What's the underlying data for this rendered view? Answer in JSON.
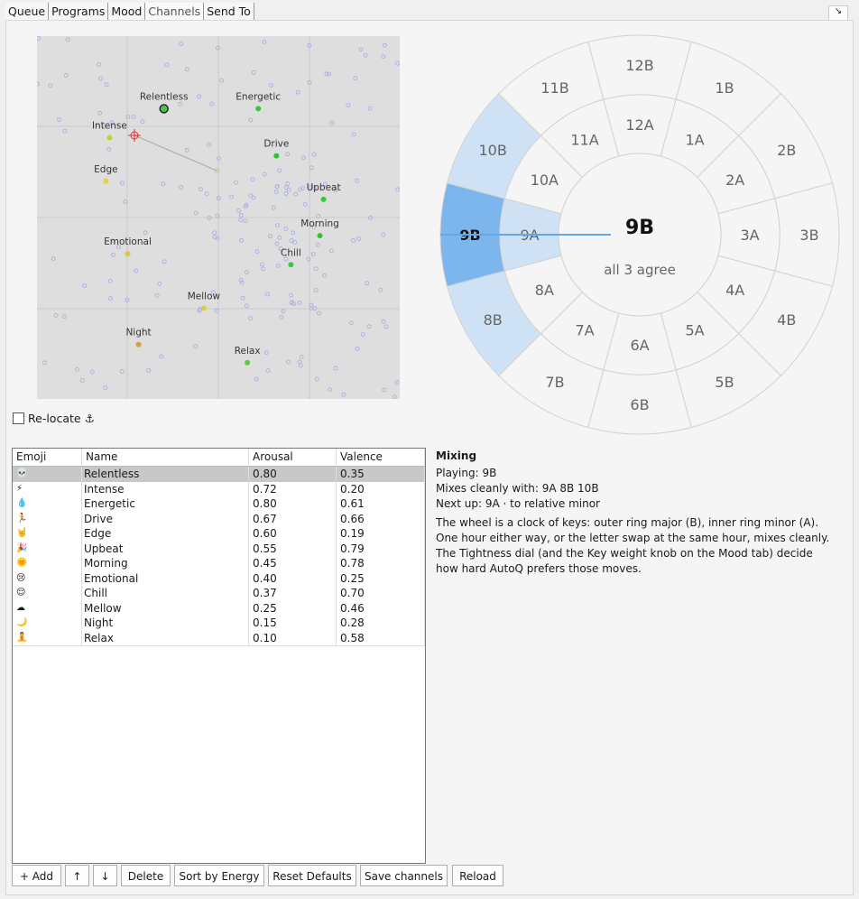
{
  "tabs": [
    "Queue",
    "Programs",
    "Mood",
    "Channels",
    "Send To"
  ],
  "active_tab": 3,
  "relocate": "Re-locate",
  "anchor": "⚓",
  "map": {
    "dot_colors": [
      "#4cc44c",
      "#b8d62c",
      "#3cc43c",
      "#34c034",
      "#e0d43a",
      "#3cc43c",
      "#34c034",
      "#e0c83a",
      "#44c444",
      "#d8d03a",
      "#e0a030",
      "#5ccc3c"
    ]
  },
  "table": {
    "columns": [
      "Emoji",
      "Name",
      "Arousal",
      "Valence"
    ],
    "rows": [
      [
        "💀",
        "Relentless",
        0.8,
        0.35
      ],
      [
        "⚡",
        "Intense",
        0.72,
        0.2
      ],
      [
        "💧",
        "Energetic",
        0.8,
        0.61
      ],
      [
        "🏃",
        "Drive",
        0.67,
        0.66
      ],
      [
        "🤘",
        "Edge",
        0.6,
        0.19
      ],
      [
        "🎉",
        "Upbeat",
        0.55,
        0.79
      ],
      [
        "🌞",
        "Morning",
        0.45,
        0.78
      ],
      [
        "😢",
        "Emotional",
        0.4,
        0.25
      ],
      [
        "😌",
        "Chill",
        0.37,
        0.7
      ],
      [
        "☁",
        "Mellow",
        0.25,
        0.46
      ],
      [
        "🌙",
        "Night",
        0.15,
        0.28
      ],
      [
        "🧘",
        "Relax",
        0.1,
        0.58
      ]
    ],
    "value_labels": [
      [
        "0.80",
        "0.35"
      ],
      [
        "0.72",
        "0.20"
      ],
      [
        "0.80",
        "0.61"
      ],
      [
        "0.67",
        "0.66"
      ],
      [
        "0.60",
        "0.19"
      ],
      [
        "0.55",
        "0.79"
      ],
      [
        "0.45",
        "0.78"
      ],
      [
        "0.40",
        "0.25"
      ],
      [
        "0.37",
        "0.70"
      ],
      [
        "0.25",
        "0.46"
      ],
      [
        "0.15",
        "0.28"
      ],
      [
        "0.10",
        "0.58"
      ]
    ],
    "selected_row": 0
  },
  "wheel": {
    "outer": [
      "12B",
      "1B",
      "2B",
      "3B",
      "4B",
      "5B",
      "6B",
      "7B",
      "8B",
      "9B",
      "10B",
      "11B"
    ],
    "inner": [
      "12A",
      "1A",
      "2A",
      "3A",
      "4A",
      "5A",
      "6A",
      "7A",
      "8A",
      "9A",
      "10A",
      "11A"
    ],
    "center_key": "9B",
    "center_note": "all 3 agree",
    "highlight": [
      {
        "ring": "outer",
        "index": 9,
        "color": "#7db6ec"
      },
      {
        "ring": "outer",
        "index": 10,
        "color": "#cfe2f5"
      },
      {
        "ring": "outer",
        "index": 8,
        "color": "#cfe2f5"
      },
      {
        "ring": "inner",
        "index": 9,
        "color": "#cfe2f5"
      }
    ]
  },
  "mixing": {
    "title": "Mixing",
    "lines": [
      "Playing: 9B",
      "Mixes cleanly with: 9A   8B   10B",
      "Next up: 9A · to relative minor"
    ],
    "paragraph": [
      "The wheel is a clock of keys: outer ring major (B), inner ring minor (A).",
      "One hour either way, or the letter swap at the same hour, mixes cleanly.",
      "The Tightness dial (and the Key weight knob on the Mood tab) decide",
      "how hard AutoQ prefers those moves."
    ]
  },
  "buttons": [
    "+ Add",
    "↑",
    "↓",
    "Delete",
    "Sort by Energy",
    "Reset Defaults",
    "Save channels",
    "Reload"
  ]
}
